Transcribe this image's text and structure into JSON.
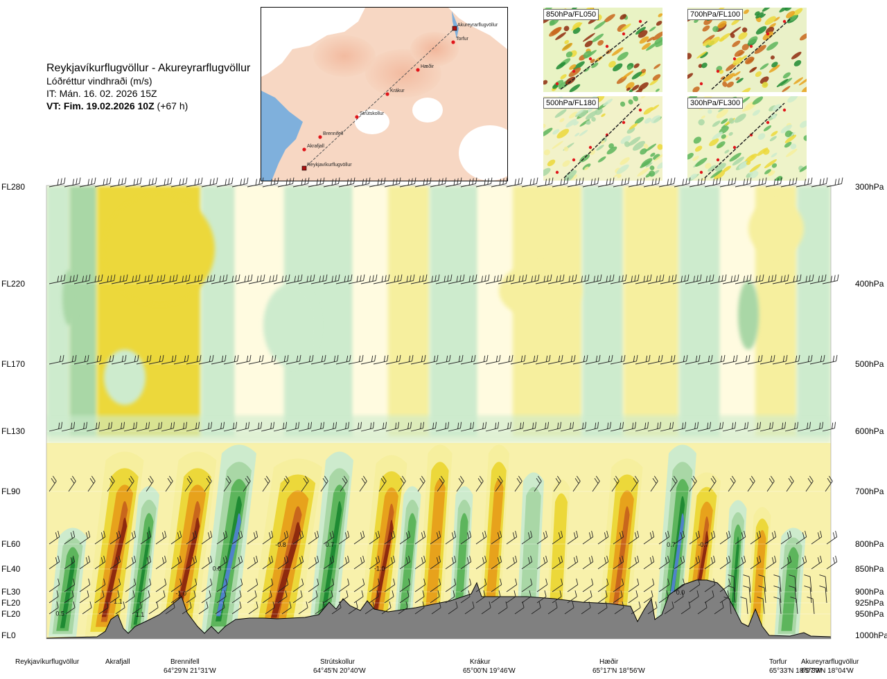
{
  "header": {
    "route": "Reykjavíkurflugvöllur - Akureyrarflugvöllur",
    "variable": "Lóðréttur vindhraði (m/s)",
    "issue_time": "IT: Mán. 16. 02. 2026 15Z",
    "valid_time_bold": "VT: Fim. 19.02.2026 10Z",
    "valid_time_extra": " (+67 h)"
  },
  "route_map": {
    "points": [
      "Akureyrarflugvöllur",
      "Torfur",
      "Hæðir",
      "Krákur",
      "Strútskollur",
      "Brennifell",
      "Akrafjall",
      "Reykjavíkurflugvöllur"
    ]
  },
  "thumbnails": [
    {
      "label": "850hPa/FL050"
    },
    {
      "label": "700hPa/FL100"
    },
    {
      "label": "500hPa/FL180"
    },
    {
      "label": "300hPa/FL300"
    }
  ],
  "chart_data": {
    "type": "heatmap",
    "title": "Lóðréttur vindhraði (m/s)",
    "x_route": "Reykjavíkurflugvöllur - Akureyrarflugvöllur",
    "left_axis_flight_levels": [
      "FL280",
      "FL220",
      "FL170",
      "FL130",
      "FL90",
      "FL60",
      "FL40",
      "FL30",
      "FL20",
      "FL20",
      "FL0"
    ],
    "right_axis_pressure": [
      "300hPa",
      "400hPa",
      "500hPa",
      "600hPa",
      "700hPa",
      "800hPa",
      "850hPa",
      "900hPa",
      "925hPa",
      "950hPa",
      "1000hPa"
    ],
    "pressure_hpa": [
      300,
      400,
      500,
      600,
      700,
      800,
      850,
      900,
      925,
      950,
      1000
    ],
    "route_fraction_range": [
      0,
      1
    ],
    "value_labels": [
      {
        "text": "0.5",
        "route_fraction": 0.01,
        "pressure_hpa": 948
      },
      {
        "text": "1.1",
        "route_fraction": 0.084,
        "pressure_hpa": 920
      },
      {
        "text": "1.1",
        "route_fraction": 0.112,
        "pressure_hpa": 950
      },
      {
        "text": "-1.0",
        "route_fraction": 0.163,
        "pressure_hpa": 902
      },
      {
        "text": "0.8",
        "route_fraction": 0.21,
        "pressure_hpa": 848
      },
      {
        "text": "-0.8",
        "route_fraction": 0.29,
        "pressure_hpa": 800
      },
      {
        "text": "0.7",
        "route_fraction": 0.354,
        "pressure_hpa": 800
      },
      {
        "text": "-1.0",
        "route_fraction": 0.416,
        "pressure_hpa": 848
      },
      {
        "text": "0.7",
        "route_fraction": 0.789,
        "pressure_hpa": 800
      },
      {
        "text": "-0.7",
        "route_fraction": 0.829,
        "pressure_hpa": 800
      },
      {
        "text": "0.0",
        "route_fraction": 0.801,
        "pressure_hpa": 900
      }
    ],
    "locations": [
      {
        "name": "Reykjavíkurflugvöllur",
        "coord": ""
      },
      {
        "name": "Akrafjall",
        "coord": ""
      },
      {
        "name": "Brennifell",
        "coord": "64°29'N 21°31'W"
      },
      {
        "name": "Strútskollur",
        "coord": "64°45'N 20°40'W"
      },
      {
        "name": "Krákur",
        "coord": "65°00'N 19°46'W"
      },
      {
        "name": "Hæðir",
        "coord": "65°17'N 18°56'W"
      },
      {
        "name": "Torfur",
        "coord": "65°33'N 18°07'W"
      },
      {
        "name": "Akureyrarflugvöllur",
        "coord": "65°39'N 18°04'W"
      }
    ],
    "colors": {
      "strong_down": "#8e2a0e",
      "down_3": "#c8661c",
      "down_2": "#e7a21c",
      "down_1": "#ecd83a",
      "weak_down": "#f6ef9e",
      "neutral": "#fffbe0",
      "weak_up": "#cdebcd",
      "up_1": "#a9d7a6",
      "up_2": "#5db55c",
      "up_3": "#1f8a33",
      "strong_up": "#4f82c9",
      "terrain": "#808080"
    }
  }
}
